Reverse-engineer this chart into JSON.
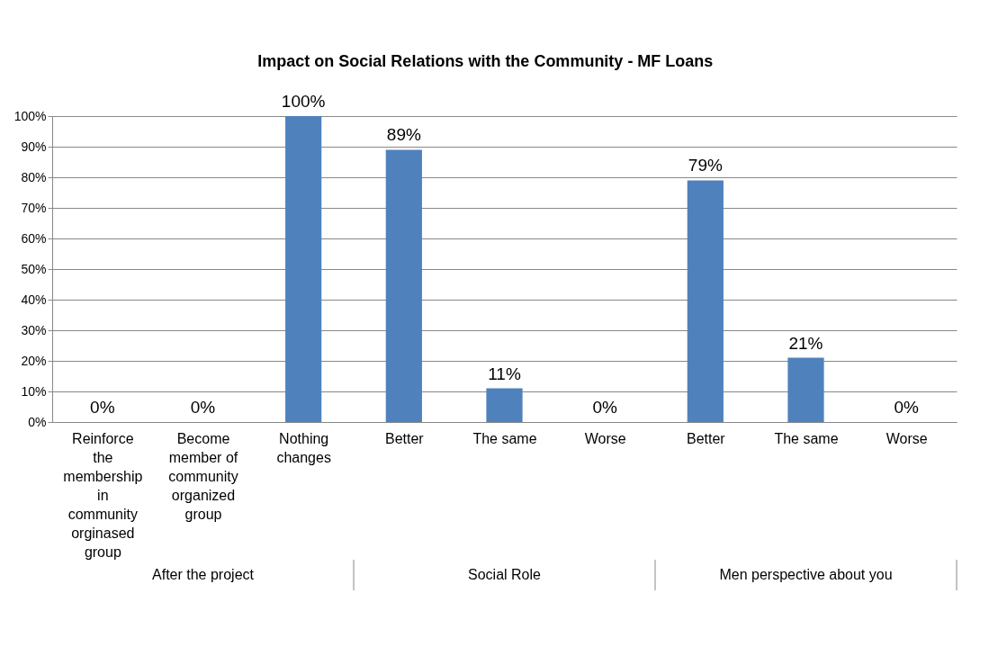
{
  "chart_data": {
    "type": "bar",
    "title": "Impact on Social Relations with the Community - MF Loans",
    "categories": [
      "Reinforce the membership in community orginased group",
      "Become member of community organized group",
      "Nothing changes",
      "Better",
      "The same",
      "Worse",
      "Better",
      "The same",
      "Worse"
    ],
    "values": [
      0,
      0,
      100,
      89,
      11,
      0,
      79,
      21,
      0
    ],
    "value_labels": [
      "0%",
      "0%",
      "100%",
      "89%",
      "11%",
      "0%",
      "79%",
      "21%",
      "0%"
    ],
    "color": "#4f81bd",
    "ylim": [
      0,
      100
    ],
    "yticks": [
      {
        "value": 0,
        "label": "0%"
      },
      {
        "value": 10,
        "label": "10%"
      },
      {
        "value": 20,
        "label": "20%"
      },
      {
        "value": 30,
        "label": "30%"
      },
      {
        "value": 40,
        "label": "40%"
      },
      {
        "value": 50,
        "label": "50%"
      },
      {
        "value": 60,
        "label": "60%"
      },
      {
        "value": 70,
        "label": "70%"
      },
      {
        "value": 80,
        "label": "80%"
      },
      {
        "value": 90,
        "label": "90%"
      },
      {
        "value": 100,
        "label": "100%"
      }
    ],
    "grid": "y",
    "annotations": [
      "After the project",
      "Social Role",
      "Men perspective about you"
    ]
  }
}
